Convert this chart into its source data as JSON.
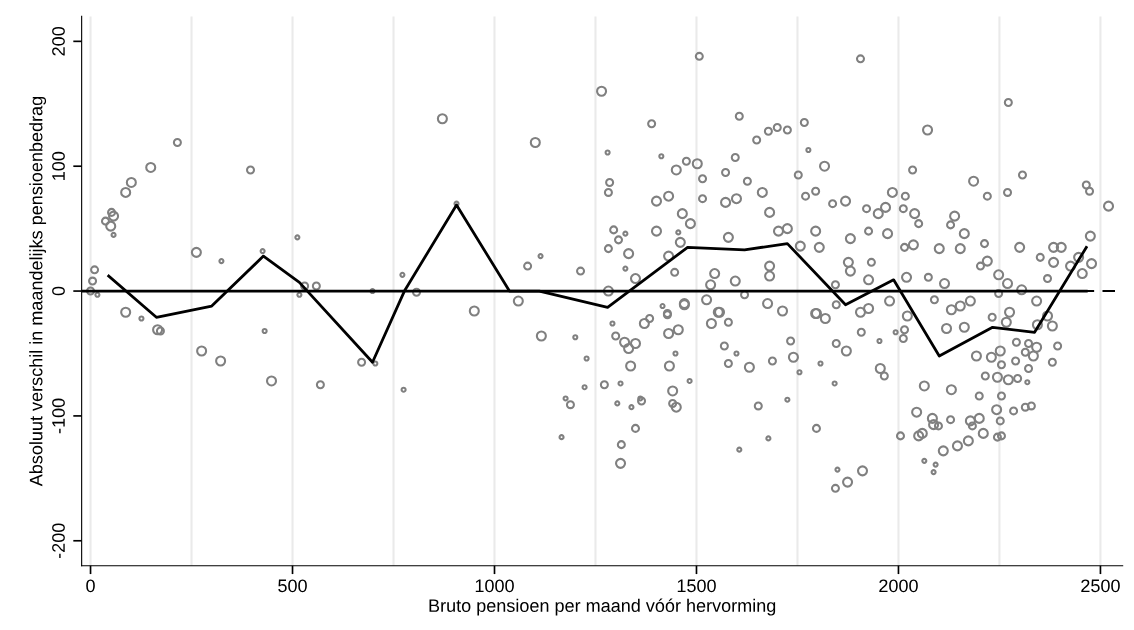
{
  "chart_data": {
    "type": "bubble",
    "xlabel": "Bruto pensioen per maand vóór hervorming",
    "ylabel": "Absoluut verschil in maandelijks pensioenbedrag",
    "xlim": [
      -22,
      2555
    ],
    "ylim": [
      -220,
      220
    ],
    "xticks": [
      0,
      {
        "value": 250,
        "label": null
      },
      500,
      {
        "value": 750,
        "label": null
      },
      1000,
      {
        "value": 1250,
        "label": null
      },
      1500,
      {
        "value": 1750,
        "label": null
      },
      2000,
      {
        "value": 2250,
        "label": null
      },
      2500
    ],
    "yticks": [
      -200,
      -100,
      0,
      100,
      200
    ],
    "grid": "x",
    "ref_lines": [
      {
        "axis": "y",
        "value": 0,
        "color": "#000000",
        "line_style": "dashed"
      }
    ],
    "series": [
      {
        "color": "#808080",
        "x": [
          10,
          5,
          0,
          17,
          37,
          50,
          52,
          57,
          57,
          87,
          101,
          149,
          215,
          396,
          262,
          324,
          426,
          512,
          530,
          559,
          517,
          698,
          772,
          807,
          871,
          906,
          87,
          126,
          166,
          173,
          275,
          322,
          431,
          448,
          569,
          671,
          705,
          775,
          1265,
          1507,
          1101,
          1389,
          1280,
          1285,
          1282,
          1082,
          1114,
          1213,
          950,
          1059,
          1282,
          1295,
          1307,
          1282,
          1332,
          1349,
          1401,
          1431,
          1450,
          1475,
          1502,
          1515,
          1401,
          1465,
          1485,
          1460,
          1431,
          1446,
          1515,
          1572,
          1606,
          1596,
          1649,
          1678,
          1700,
          1725,
          1767,
          1752,
          1663,
          1599,
          1572,
          1626,
          1681,
          1703,
          1725,
          1757,
          1681,
          1681,
          1596,
          1545,
          1535,
          1579,
          1619,
          1713,
          1797,
          1554,
          1470,
          1428,
          1413,
          1777,
          1324,
          1324,
          1455,
          1116,
          1166,
          1200,
          1228,
          1223,
          1176,
          1188,
          1272,
          1292,
          1300,
          1312,
          1304,
          1314,
          1312,
          1322,
          1332,
          1349,
          1337,
          1349,
          1361,
          1364,
          1339,
          1371,
          1384,
          1416,
          1428,
          1431,
          1455,
          1448,
          1433,
          1441,
          1450,
          1441,
          1483,
          1470,
          1525,
          1557,
          1537,
          1579,
          1569,
          1579,
          1599,
          1631,
          1606,
          1653,
          1678,
          1688,
          1725,
          1733,
          1740,
          1755,
          1797,
          1795,
          1676,
          1906,
          2272,
          2072,
          1817,
          1869,
          1837,
          1795,
          1770,
          1950,
          1968,
          1985,
          1921,
          2035,
          2017,
          2012,
          2040,
          2050,
          1973,
          1926,
          1881,
          1804,
          1795,
          2037,
          2015,
          2101,
          2139,
          2129,
          2163,
          2153,
          2186,
          2220,
          2270,
          2307,
          2213,
          2300,
          2384,
          2403,
          2384,
          2220,
          2203,
          2426,
          2455,
          2478,
          2475,
          2465,
          2473,
          2520,
          2446,
          2351,
          2369,
          2248,
          2270,
          2305,
          2114,
          2074,
          2020,
          1926,
          1933,
          1876,
          1881,
          1844,
          2342,
          2178,
          2153,
          2131,
          2089,
          1978,
          1926,
          1906,
          1819,
          1846,
          1908,
          1846,
          1871,
          1807,
          1953,
          1955,
          1965,
          1842,
          1849,
          1844,
          1874,
          1911,
          1993,
          2015,
          2012,
          2022,
          2005,
          2064,
          2045,
          2050,
          2059,
          2084,
          2087,
          2099,
          2064,
          2092,
          2087,
          2111,
          2131,
          2129,
          2119,
          2163,
          2146,
          2173,
          2178,
          2200,
          2183,
          2210,
          2193,
          2200,
          2215,
          2230,
          2252,
          2255,
          2245,
          2272,
          2295,
          2255,
          2243,
          2252,
          2285,
          2245,
          2255,
          2290,
          2322,
          2319,
          2314,
          2329,
          2292,
          2322,
          2314,
          2334,
          2342,
          2381,
          2394,
          2381,
          2369,
          2344,
          2267,
          2232,
          2275,
          2248
        ],
        "values": [
          17,
          8,
          0,
          -3,
          56,
          52,
          63,
          60,
          45,
          79,
          87,
          99,
          119,
          97,
          31,
          24,
          32,
          43,
          4,
          4,
          -3,
          0,
          13,
          -1,
          138,
          70,
          -17,
          -22,
          -31,
          -32,
          -48,
          -56,
          -32,
          -72,
          -75,
          -57,
          -58,
          -79,
          160,
          188,
          119,
          134,
          111,
          87,
          79,
          20,
          28,
          16,
          -16,
          -8,
          0,
          49,
          41,
          34,
          30,
          10,
          72,
          76,
          97,
          104,
          102,
          90,
          48,
          62,
          54,
          39,
          28,
          15,
          74,
          95,
          140,
          107,
          121,
          128,
          131,
          129,
          135,
          93,
          79,
          74,
          71,
          88,
          63,
          48,
          50,
          36,
          20,
          12,
          8,
          14,
          5,
          43,
          -3,
          -16,
          -18,
          -17,
          -10,
          -18,
          108,
          113,
          46,
          18,
          47,
          -36,
          -117,
          -37,
          -54,
          -77,
          -86,
          -91,
          -75,
          -26,
          -36,
          -74,
          -90,
          -123,
          -138,
          -41,
          -46,
          -42,
          -60,
          -110,
          -86,
          -88,
          -93,
          -26,
          -22,
          -12,
          -19,
          -34,
          -31,
          -50,
          -60,
          -80,
          -93,
          -90,
          -72,
          -11,
          -7,
          -17,
          -26,
          -25,
          -44,
          -58,
          -50,
          -61,
          -127,
          -92,
          -118,
          -56,
          -87,
          -40,
          -53,
          -65,
          -110,
          -18,
          -10,
          186,
          151,
          129,
          100,
          72,
          70,
          80,
          76,
          62,
          67,
          79,
          66,
          97,
          76,
          66,
          62,
          54,
          46,
          48,
          42,
          35,
          48,
          37,
          35,
          34,
          60,
          53,
          46,
          34,
          88,
          76,
          79,
          93,
          38,
          35,
          35,
          35,
          23,
          24,
          20,
          20,
          14,
          22,
          44,
          85,
          80,
          68,
          27,
          27,
          10,
          13,
          6,
          1,
          6,
          11,
          11,
          9,
          23,
          23,
          16,
          5,
          -8,
          -8,
          -12,
          -15,
          -7,
          -8,
          -14,
          -17,
          -22,
          -11,
          -33,
          -42,
          -48,
          -58,
          -40,
          -62,
          -68,
          -74,
          -143,
          -158,
          -153,
          -144,
          -33,
          -31,
          -38,
          -20,
          -116,
          -76,
          -97,
          -116,
          -114,
          -102,
          -107,
          -108,
          -136,
          -139,
          -145,
          -128,
          -79,
          -103,
          -30,
          -29,
          -124,
          -120,
          -104,
          -102,
          -108,
          -114,
          -52,
          -84,
          -68,
          -53,
          -48,
          -59,
          -69,
          -71,
          -70,
          -84,
          -95,
          -104,
          -96,
          -117,
          -116,
          -56,
          -62,
          -73,
          -93,
          -92,
          -41,
          -42,
          -49,
          -52,
          -45,
          -57,
          -44,
          -28,
          -20,
          -27,
          -25,
          -21,
          -17,
          -2
        ],
        "sizes": [
          0.6,
          0.6,
          0.6,
          0.2,
          0.6,
          1,
          0.6,
          1,
          0.2,
          1,
          1,
          1,
          0.6,
          0.6,
          1,
          0.2,
          0.2,
          0.2,
          0.6,
          0.6,
          0.2,
          0.2,
          0.2,
          0.6,
          1,
          0.2,
          1,
          0.2,
          1,
          0.6,
          1,
          1,
          0.2,
          1,
          0.6,
          0.6,
          0.2,
          0.2,
          1,
          0.6,
          1,
          0.6,
          0.2,
          0.6,
          0.6,
          0.6,
          0.2,
          0.6,
          1,
          1,
          1,
          0.6,
          0.6,
          0.6,
          1,
          1,
          1,
          1,
          1,
          0.6,
          1,
          0.6,
          1,
          1,
          1,
          1,
          1,
          0.6,
          0.6,
          0.6,
          0.6,
          0.6,
          0.6,
          0.6,
          0.6,
          0.6,
          0.6,
          0.6,
          1,
          1,
          1,
          0.6,
          1,
          1,
          1,
          1,
          1,
          1,
          1,
          1,
          1,
          1,
          0.6,
          1,
          1,
          1,
          1,
          0.6,
          0.2,
          0.2,
          0.2,
          0.2,
          0.2,
          1,
          0.2,
          0.2,
          0.2,
          0.2,
          0.2,
          0.6,
          0.6,
          0.2,
          0.6,
          0.2,
          0.2,
          0.6,
          1,
          1,
          1,
          1,
          1,
          0.6,
          0.2,
          0.6,
          0.2,
          1,
          0.6,
          0.2,
          0.6,
          1,
          1,
          0.2,
          1,
          1,
          1,
          0.6,
          0.2,
          1,
          1,
          1,
          1,
          0.6,
          0.6,
          0.6,
          0.2,
          1,
          0.2,
          0.6,
          0.2,
          0.6,
          0.2,
          0.6,
          1,
          0.2,
          0.6,
          1,
          1,
          0.6,
          0.6,
          1,
          1,
          1,
          0.6,
          0.6,
          0.6,
          1,
          1,
          1,
          0.6,
          0.6,
          0.6,
          0.6,
          1,
          0.6,
          1,
          0.6,
          1,
          1,
          1,
          1,
          0.6,
          1,
          1,
          0.6,
          1,
          1,
          1,
          0.6,
          0.6,
          0.6,
          0.6,
          1,
          1,
          1,
          1,
          1,
          0.6,
          1,
          1,
          1,
          1,
          0.6,
          0.6,
          1,
          1,
          0.6,
          0.6,
          1,
          1,
          1,
          1,
          0.6,
          1,
          1,
          0.6,
          1,
          1,
          0.6,
          1,
          1,
          1,
          1,
          0.6,
          1,
          1,
          1,
          1,
          0.6,
          0.6,
          0.6,
          1,
          0.2,
          0.2,
          1,
          0.6,
          0.2,
          0.2,
          0.6,
          1,
          1,
          0.2,
          0.6,
          0.6,
          1,
          0.6,
          1,
          1,
          1,
          1,
          1,
          1,
          0.6,
          0.2,
          0.2,
          0.2,
          1,
          1,
          0.6,
          1,
          1,
          1,
          1,
          1,
          1,
          0.6,
          1,
          1,
          0.6,
          0.6,
          1,
          1,
          0.6,
          1,
          1,
          0.6,
          0.6,
          1,
          0.6,
          0.6,
          0.6,
          0.6,
          0.6,
          0.6,
          0.2,
          0.6,
          0.6,
          0.6,
          0.6,
          0.6,
          1,
          1,
          0.6,
          0.6,
          1,
          1,
          1,
          1,
          0.6,
          1,
          0.6
        ]
      },
      {
        "type": "line",
        "color": "#000000",
        "x": [
          -22,
          2465
        ],
        "values": [
          0,
          0
        ]
      },
      {
        "type": "line",
        "color": "#000000",
        "x": [
          45,
          163,
          300,
          428,
          517,
          698,
          777,
          906,
          1037,
          1111,
          1280,
          1478,
          1619,
          1725,
          1869,
          1988,
          2101,
          2233,
          2337,
          2465
        ],
        "values": [
          12,
          -21,
          -12,
          28,
          7,
          -57,
          0,
          69,
          0,
          0,
          -13,
          35,
          33,
          38,
          -11,
          9,
          -52,
          -29,
          -33,
          35
        ]
      }
    ]
  }
}
